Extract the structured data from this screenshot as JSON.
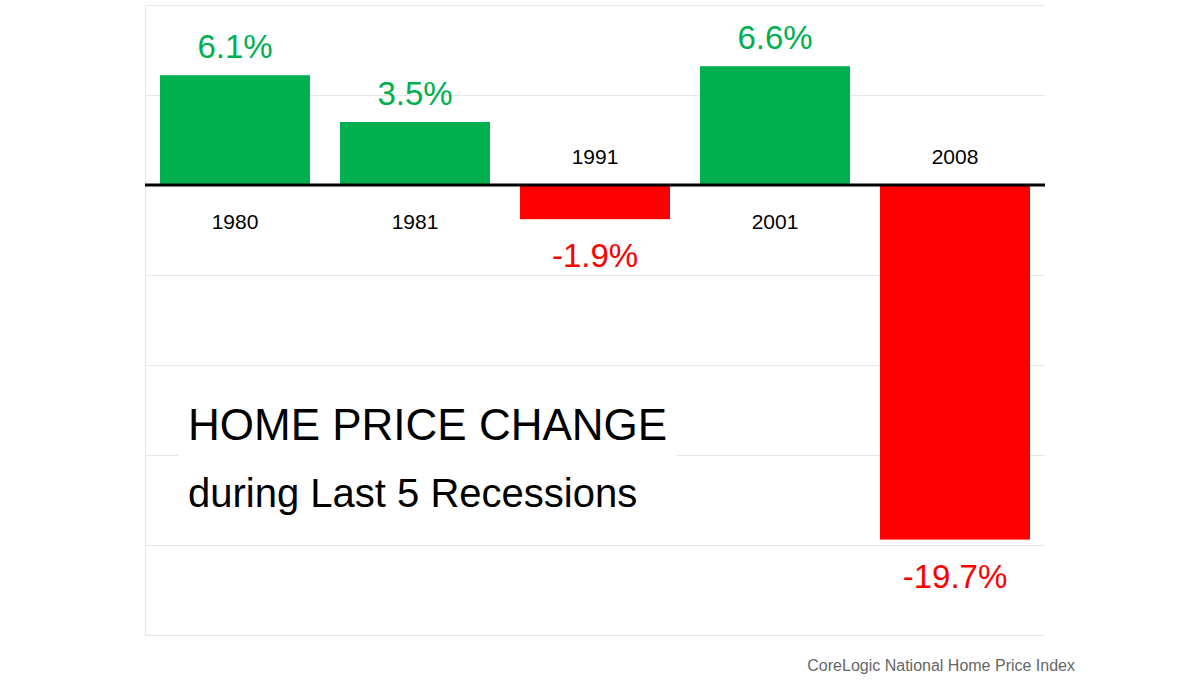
{
  "chart_data": {
    "type": "bar",
    "title": "HOME PRICE CHANGE",
    "subtitle": "during Last 5 Recessions",
    "annotations": [
      "CoreLogic National Home Price Index"
    ],
    "categories": [
      "1980",
      "1981",
      "1991",
      "2001",
      "2008"
    ],
    "values": [
      6.1,
      3.5,
      -1.9,
      6.6,
      -19.7
    ],
    "value_labels": [
      "6.1%",
      "3.5%",
      "-1.9%",
      "6.6%",
      "-19.7%"
    ],
    "colors": [
      "#00b050",
      "#00b050",
      "#ff0000",
      "#00b050",
      "#ff0000"
    ],
    "ylim": [
      -25,
      10
    ],
    "yticks": [
      -25,
      -20,
      -15,
      -10,
      -5,
      0,
      5,
      10
    ],
    "grid": true,
    "data_labels": true,
    "tick_labels": false
  }
}
